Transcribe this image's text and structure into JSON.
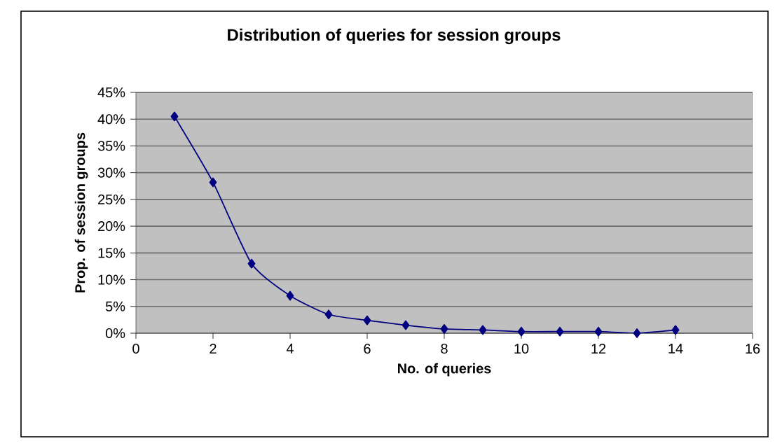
{
  "chart_data": {
    "type": "line",
    "title": "Distribution of queries for session groups",
    "xlabel": "No. of queries",
    "ylabel": "Prop. of  session groups",
    "x": [
      1,
      2,
      3,
      4,
      5,
      6,
      7,
      8,
      9,
      10,
      11,
      12,
      13,
      14
    ],
    "series": [
      {
        "color": "#000080",
        "values": [
          40.5,
          28.2,
          13,
          7,
          3.5,
          2.4,
          1.5,
          0.8,
          0.6,
          0.3,
          0.3,
          0.3,
          0,
          0.6
        ]
      }
    ],
    "xlim": [
      0,
      16
    ],
    "xticks": [
      0,
      2,
      4,
      6,
      8,
      10,
      12,
      14,
      16
    ],
    "ylim": [
      0,
      45
    ],
    "yticks": [
      {
        "value": 0,
        "label": "0%"
      },
      {
        "value": 5,
        "label": "5%"
      },
      {
        "value": 10,
        "label": "10%"
      },
      {
        "value": 15,
        "label": "15%"
      },
      {
        "value": 20,
        "label": "20%"
      },
      {
        "value": 25,
        "label": "25%"
      },
      {
        "value": 30,
        "label": "30%"
      },
      {
        "value": 35,
        "label": "35%"
      },
      {
        "value": 40,
        "label": "40%"
      },
      {
        "value": 45,
        "label": "45%"
      }
    ],
    "grid": "y",
    "marker": "diamond",
    "line_style": "solid"
  }
}
